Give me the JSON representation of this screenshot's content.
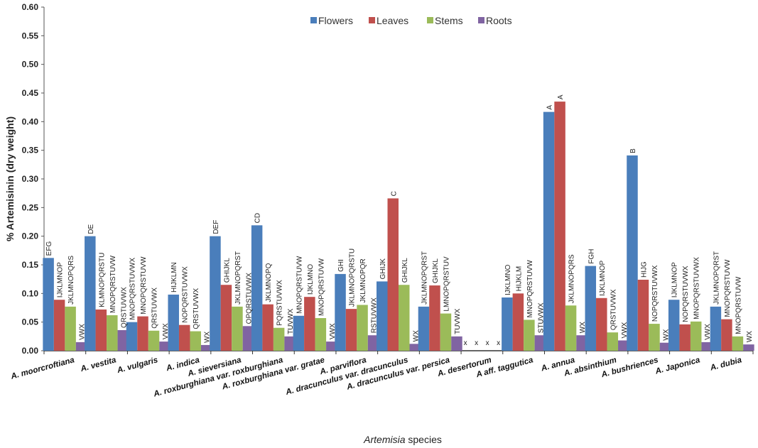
{
  "chart_data": {
    "type": "bar",
    "title": "",
    "xlabel": "Artemisia species",
    "xlabel_italic_part": "Artemisia",
    "xlabel_rest": " species",
    "ylabel": "% Artemisinin (dry weight)",
    "ylim": [
      0,
      0.6
    ],
    "yticks": [
      "0.00",
      "0.05",
      "0.10",
      "0.15",
      "0.20",
      "0.25",
      "0.30",
      "0.35",
      "0.40",
      "0.45",
      "0.50",
      "0.55",
      "0.60"
    ],
    "grid": false,
    "legend_position": "top-center",
    "categories": [
      "A. moorcroftiana",
      "A. vestita",
      "A. vulgaris",
      "A. indica",
      "A. sieversiana",
      "A. roxburghiana var. roxburghiana",
      "A. roxburghiana var. gratae",
      "A. parviflora",
      "A. dracunculus var. dracunculus",
      "A. dracunculus var. persica",
      "A. desertorum",
      "A aff. taggutica",
      "A. annua",
      "A. absinthium",
      "A. bushriences",
      "A. Japonica",
      "A. dubia"
    ],
    "series": [
      {
        "name": "Flowers",
        "color": "#4a7ebb",
        "values": [
          0.162,
          0.2,
          0.05,
          0.098,
          0.2,
          0.219,
          0.061,
          0.134,
          0.121,
          0.077,
          0,
          0.093,
          0.417,
          0.148,
          0.341,
          0.089,
          0.077
        ],
        "labels": [
          "EFG",
          "DE",
          "MNOPQRSTUVWX",
          "HIJKLMN",
          "DEF",
          "CD",
          "MNOPQRSTUVW",
          "GHI",
          "GHIJK",
          "JKLMNOPQRST",
          "x",
          "IJKLMNO",
          "A",
          "FGH",
          "B",
          "IJKLMNOP",
          "JKLMNOPQRST"
        ]
      },
      {
        "name": "Leaves",
        "color": "#c0504d",
        "values": [
          0.089,
          0.072,
          0.06,
          0.045,
          0.115,
          0.081,
          0.094,
          0.073,
          0.266,
          0.114,
          0,
          0.1,
          0.435,
          0.092,
          0.124,
          0.046,
          0.055
        ],
        "labels": [
          "IJKLMNOP",
          "KLMNOPQRSTU",
          "MNOPQRSTUVW",
          "NOPQRSTUVWX",
          "GHIJKL",
          "JKLMNOPQ",
          "IJKLMNO",
          "JKLMNOPQRSTU",
          "C",
          "GHIJKL",
          "x",
          "HIJKLM",
          "A",
          "IJKLMNOP",
          "HIJG",
          "NOPQRSTUVWX",
          "MNOPQRSTUVW"
        ]
      },
      {
        "name": "Stems",
        "color": "#9bbb59",
        "values": [
          0.077,
          0.062,
          0.035,
          0.034,
          0.077,
          0.04,
          0.057,
          0.08,
          0.115,
          0.065,
          0,
          0.054,
          0.079,
          0.032,
          0.047,
          0.051,
          0.025
        ],
        "labels": [
          "JKLMNOPQRS",
          "MNOPQRSTUVW",
          "QRSTUVWX",
          "QRSTUVWX",
          "JKLMNOPQRST",
          "PQRSTUVWX",
          "MNOPQRSTUVW",
          "JKLMNOPQR",
          "GHIJKL",
          "LMNOPQRSTUV",
          "x",
          "MNOPQRSTUVW",
          "JKLMNOPQRS",
          "QRSTUVWX",
          "NOPQRSTUVWX",
          "MNOPQRSTUVWX",
          "MNOPQRSTUVW"
        ]
      },
      {
        "name": "Roots",
        "color": "#8064a2",
        "values": [
          0.015,
          0.036,
          0.016,
          0.01,
          0.043,
          0.025,
          0.016,
          0.027,
          0.012,
          0.025,
          0,
          0.027,
          0.027,
          0.018,
          0.014,
          0.015,
          0.011
        ],
        "labels": [
          "VWX",
          "QRSTUVWX",
          "VWX",
          "WX",
          "OPQRSTUVWX",
          "TUVWX",
          "VWX",
          "RSTUVWX",
          "WX",
          "TUVWX",
          "x",
          "STUVWX",
          "WX",
          "VWX",
          "WX",
          "VWX",
          "WX"
        ]
      }
    ]
  }
}
